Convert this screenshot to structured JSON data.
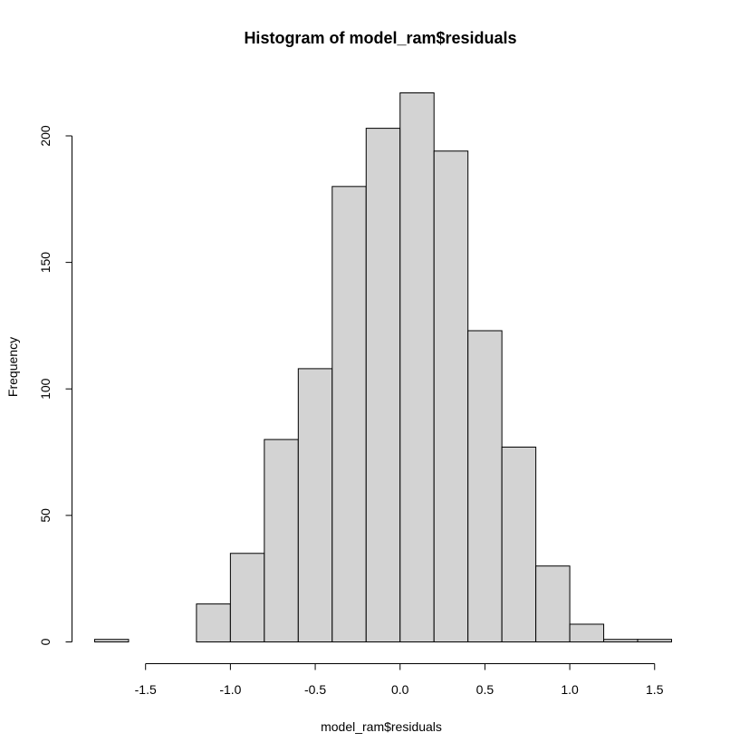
{
  "chart_data": {
    "type": "bar",
    "title": "Histogram of model_ram$residuals",
    "xlabel": "model_ram$residuals",
    "ylabel": "Frequency",
    "bin_edges": [
      -1.8,
      -1.6,
      -1.4,
      -1.2,
      -1.0,
      -0.8,
      -0.6,
      -0.4,
      -0.2,
      0.0,
      0.2,
      0.4,
      0.6,
      0.8,
      1.0,
      1.2,
      1.4,
      1.6
    ],
    "values": [
      1,
      0,
      0,
      15,
      35,
      80,
      108,
      180,
      203,
      217,
      194,
      123,
      77,
      30,
      7,
      1,
      1
    ],
    "xlim": [
      -1.8,
      1.6
    ],
    "ylim": [
      0,
      217
    ],
    "x_ticks": [
      -1.5,
      -1.0,
      -0.5,
      0.0,
      0.5,
      1.0,
      1.5
    ],
    "x_tick_labels": [
      "-1.5",
      "-1.0",
      "-0.5",
      "0.0",
      "0.5",
      "1.0",
      "1.5"
    ],
    "y_ticks": [
      0,
      50,
      100,
      150,
      200
    ],
    "y_tick_labels": [
      "0",
      "50",
      "100",
      "150",
      "200"
    ],
    "bar_fill": "#d3d3d3",
    "bar_stroke": "#000000",
    "grid": false
  }
}
